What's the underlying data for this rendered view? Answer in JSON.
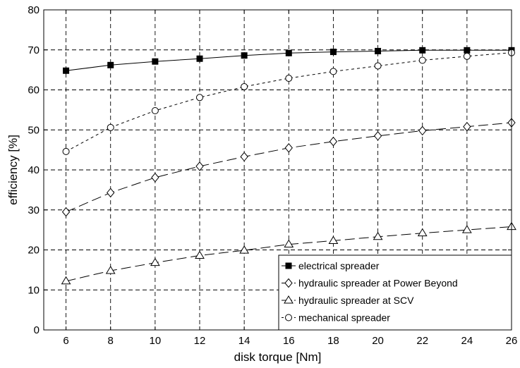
{
  "chart_data": {
    "type": "line",
    "title": "",
    "xlabel": "disk torque [Nm]",
    "ylabel": "efficiency [%]",
    "x": [
      6,
      8,
      10,
      12,
      14,
      16,
      18,
      20,
      22,
      24,
      26
    ],
    "xlim": [
      5,
      26
    ],
    "ylim": [
      0,
      80
    ],
    "xticks": [
      6,
      8,
      10,
      12,
      14,
      16,
      18,
      20,
      22,
      24,
      26
    ],
    "yticks": [
      0,
      10,
      20,
      30,
      40,
      50,
      60,
      70,
      80
    ],
    "grid": true,
    "legend_position": "bottom-right",
    "series": [
      {
        "name": "electrical spreader",
        "marker": "filled-square",
        "line_style": "solid",
        "values": [
          64.8,
          66.2,
          67.1,
          67.8,
          68.6,
          69.2,
          69.5,
          69.7,
          69.9,
          69.9,
          69.9
        ]
      },
      {
        "name": "hydraulic spreader at Power Beyond",
        "marker": "open-diamond",
        "line_style": "long-dash",
        "values": [
          29.5,
          34.3,
          38.1,
          40.9,
          43.3,
          45.5,
          47.1,
          48.5,
          49.8,
          50.8,
          51.8
        ]
      },
      {
        "name": "hydraulic spreader at SCV",
        "marker": "open-triangle",
        "line_style": "long-dash",
        "values": [
          12.2,
          14.8,
          16.8,
          18.6,
          19.9,
          21.4,
          22.3,
          23.3,
          24.2,
          25.0,
          25.8
        ]
      },
      {
        "name": "mechanical spreader",
        "marker": "open-circle",
        "line_style": "short-dash",
        "values": [
          44.6,
          50.6,
          54.8,
          58.1,
          60.8,
          62.9,
          64.6,
          66.0,
          67.4,
          68.4,
          69.3
        ]
      }
    ]
  }
}
